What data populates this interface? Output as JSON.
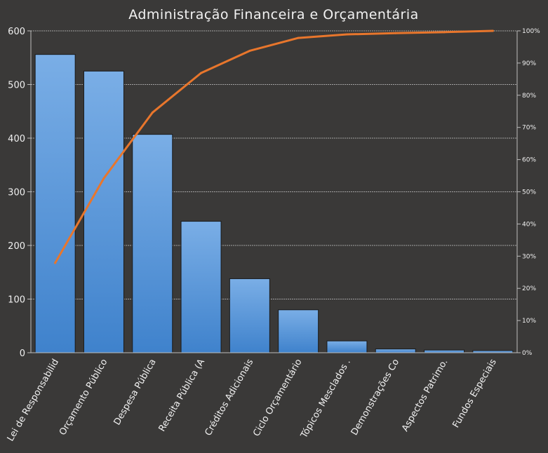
{
  "chart_data": {
    "type": "bar",
    "title": "Administração Financeira e Orçamentária",
    "categories": [
      "Lei de Responsabilid",
      "Orçamento Público",
      "Despesa Pública",
      "Receita Pública (A",
      "Créditos Adicionais",
      "Ciclo Orçamentário",
      "Tópicos Mesclados .",
      "Demonstrações Co",
      "Aspectos Patrimo.",
      "Fundos Especiais"
    ],
    "series": [
      {
        "type": "bar",
        "values": [
          556,
          525,
          407,
          245,
          138,
          80,
          22,
          7,
          5,
          4
        ]
      },
      {
        "type": "line",
        "axis": "right",
        "values": [
          27.9,
          54.2,
          74.6,
          86.9,
          93.8,
          97.8,
          98.9,
          99.3,
          99.6,
          100
        ]
      }
    ],
    "xlabel": "",
    "ylabel": "",
    "ylim": [
      0,
      600
    ],
    "yticks": [
      0,
      100,
      200,
      300,
      400,
      500,
      600
    ],
    "y2lim": [
      0,
      100
    ],
    "y2ticks": [
      "0%",
      "10%",
      "20%",
      "30%",
      "40%",
      "50%",
      "60%",
      "70%",
      "80%",
      "90%",
      "100%"
    ],
    "grid": true,
    "legend": "none",
    "colors": {
      "background": "#3a3938",
      "bar_top": "#7aaee6",
      "bar_bottom": "#3f82cc",
      "bar_edge": "#1a1a1a",
      "line": "#e8762c",
      "grid": "#bdbdbd",
      "text": "#f2f2f2"
    }
  }
}
